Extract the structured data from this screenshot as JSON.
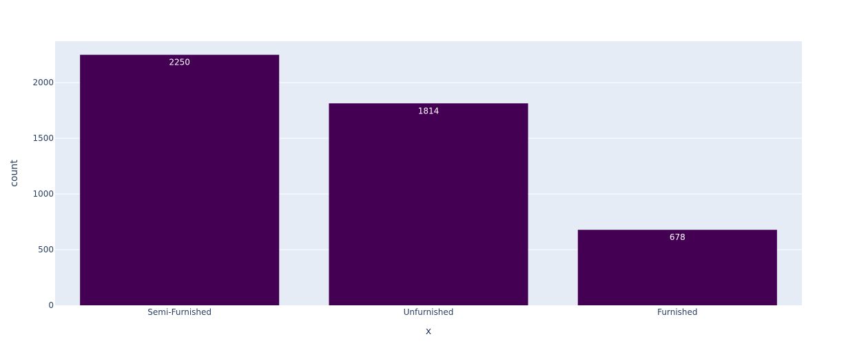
{
  "chart_data": {
    "type": "bar",
    "categories": [
      "Semi-Furnished",
      "Unfurnished",
      "Furnished"
    ],
    "values": [
      2250,
      1814,
      678
    ],
    "data_labels": [
      "2250",
      "1814",
      "678"
    ],
    "xlabel": "x",
    "ylabel": "count",
    "ylim": [
      0,
      2371.58
    ],
    "yticks": [
      0,
      500,
      1000,
      1500,
      2000
    ],
    "ytick_labels": [
      "0",
      "500",
      "1000",
      "1500",
      "2000"
    ],
    "grid": true,
    "legend": "none",
    "colors": {
      "bar": "#440154",
      "plot_background": "#e5ecf6",
      "grid": "#ffffff",
      "text": "#2a3f5f",
      "bar_label": "#ffffff"
    }
  }
}
